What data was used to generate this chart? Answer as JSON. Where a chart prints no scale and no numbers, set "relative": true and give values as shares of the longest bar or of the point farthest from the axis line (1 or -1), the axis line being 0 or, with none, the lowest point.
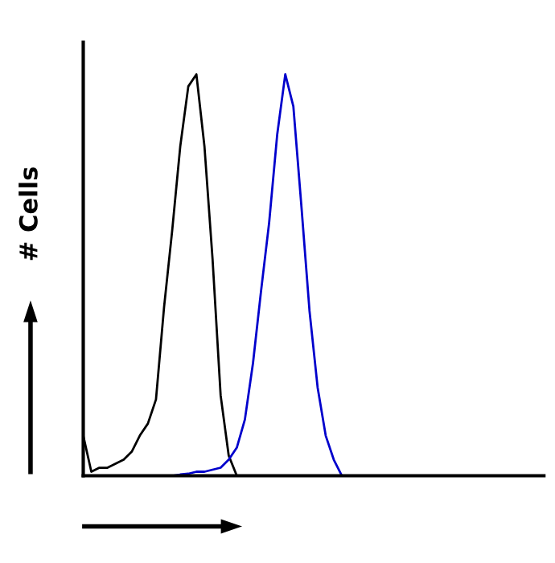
{
  "chart_data": {
    "type": "line",
    "relative": true,
    "ylabel": "# Cells",
    "legend": false,
    "marker": "none",
    "line_style": "solid",
    "categories": [
      null,
      null,
      null,
      null,
      null,
      null,
      null,
      null,
      null,
      null,
      null,
      null,
      null,
      null,
      null,
      null,
      null,
      null,
      null,
      null,
      null,
      null,
      null,
      null,
      null,
      null,
      null,
      null,
      null,
      null,
      null,
      null,
      null,
      null,
      null,
      null,
      null,
      null,
      null,
      null,
      null,
      null,
      null,
      null,
      null,
      null,
      null,
      null,
      null,
      null,
      null,
      null,
      null,
      null,
      null,
      null,
      null,
      null
    ],
    "series": [
      {
        "color": "#000000",
        "values": [
          0.1,
          0.01,
          0.02,
          0.02,
          0.03,
          0.04,
          0.06,
          0.1,
          0.13,
          0.19,
          0.42,
          0.61,
          0.82,
          0.97,
          1.0,
          0.82,
          0.54,
          0.2,
          0.05,
          0,
          null,
          null,
          null,
          null,
          null,
          null,
          null,
          null,
          null,
          null,
          null,
          null,
          null,
          null,
          null,
          null,
          null,
          null,
          null,
          null,
          null,
          null,
          null,
          null,
          null,
          null,
          null,
          null,
          null,
          null,
          null,
          null,
          null,
          null,
          null,
          null,
          null,
          null
        ]
      },
      {
        "color": "#0000cc",
        "values": [
          null,
          null,
          null,
          null,
          null,
          null,
          null,
          null,
          null,
          null,
          null,
          0,
          0.003,
          0.005,
          0.01,
          0.01,
          0.015,
          0.02,
          0.04,
          0.07,
          0.14,
          0.28,
          0.46,
          0.63,
          0.85,
          1.0,
          0.92,
          0.67,
          0.41,
          0.22,
          0.1,
          0.04,
          0,
          null,
          null,
          null,
          null,
          null,
          null,
          null,
          null,
          null,
          null,
          null,
          null,
          null,
          null,
          null,
          null,
          null,
          null,
          null,
          null,
          null,
          null,
          null,
          null,
          null
        ]
      }
    ]
  }
}
